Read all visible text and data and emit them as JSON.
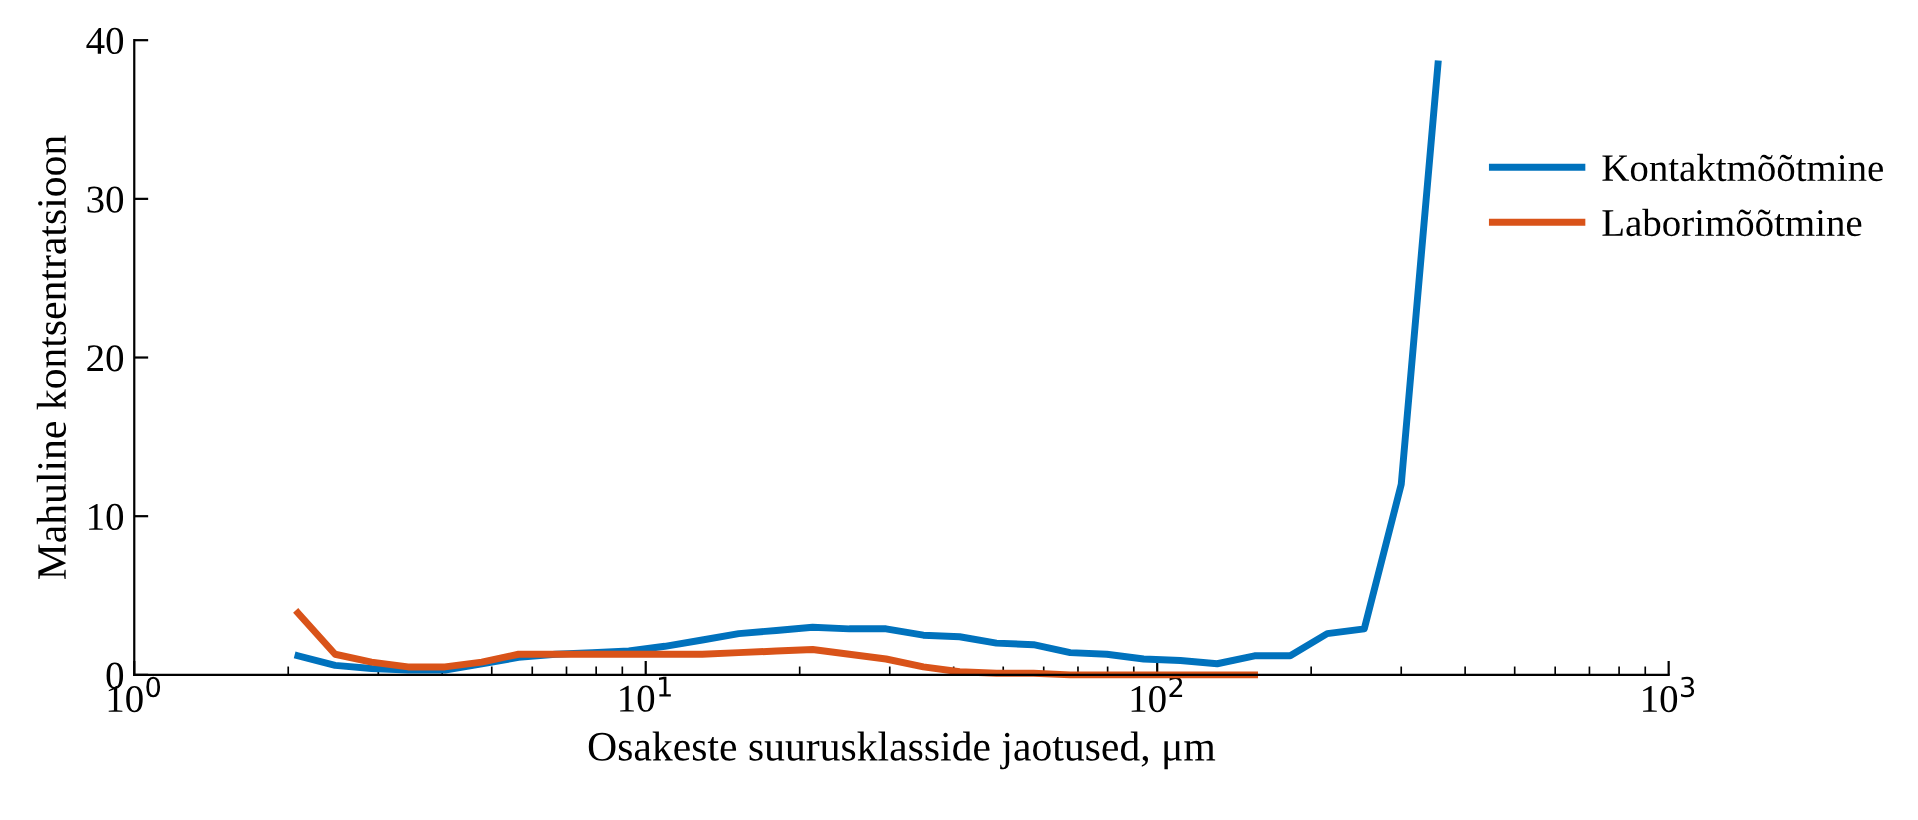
{
  "chart_data": {
    "type": "line",
    "xlabel": "Osakeste suurusklasside jaotused, μm",
    "ylabel": "Mahuline kontsentratsioon",
    "x": [
      2.09,
      2.47,
      2.91,
      3.43,
      4.05,
      4.78,
      5.64,
      6.66,
      7.86,
      9.27,
      10.9,
      12.9,
      15.2,
      18.0,
      21.2,
      25.0,
      29.5,
      34.9,
      41.1,
      48.5,
      57.3,
      67.6,
      79.7,
      94.1,
      111,
      131,
      155,
      182,
      215,
      254,
      300,
      354
    ],
    "series": [
      {
        "name": "Kontaktmõõtmine",
        "color": "#0072bd",
        "values": [
          1.2,
          0.6,
          0.4,
          0.3,
          0.3,
          0.7,
          1.1,
          1.3,
          1.4,
          1.5,
          1.8,
          2.2,
          2.6,
          2.8,
          3.0,
          2.9,
          2.9,
          2.5,
          2.4,
          2.0,
          1.9,
          1.4,
          1.3,
          1.0,
          0.9,
          0.7,
          1.2,
          1.2,
          2.6,
          2.9,
          12,
          38.5
        ]
      },
      {
        "name": "Laborimõõtmine",
        "color": "#d95319",
        "values": [
          3.9,
          1.3,
          0.8,
          0.5,
          0.5,
          0.8,
          1.3,
          1.3,
          1.3,
          1.3,
          1.3,
          1.3,
          1.4,
          1.5,
          1.6,
          1.3,
          1.0,
          0.5,
          0.2,
          0.1,
          0.1,
          0,
          0,
          0,
          0,
          0,
          0,
          null,
          null,
          null,
          null,
          null
        ]
      }
    ],
    "log": "x",
    "xlim": [
      1,
      1000
    ],
    "xticks": [
      {
        "value": 1,
        "label": "10$^{0}$"
      },
      {
        "value": 10,
        "label": "10$^{1}$"
      },
      {
        "value": 100,
        "label": "10$^{2}$"
      },
      {
        "value": 1000,
        "label": "10$^{3}$"
      }
    ],
    "ylim": [
      0,
      40
    ],
    "yticks": [
      0,
      10,
      20,
      30,
      40
    ],
    "legend": "right",
    "grid": false
  }
}
